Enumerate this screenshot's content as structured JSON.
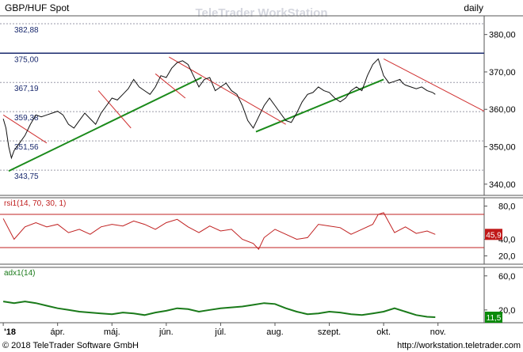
{
  "header": {
    "symbol": "GBP/HUF Spot",
    "watermark": "TeleTrader WorkStation",
    "period": "daily"
  },
  "footer": {
    "copyright": "© 2018 TeleTrader Software GmbH",
    "url": "http://workstation.teletrader.com"
  },
  "colors": {
    "background": "#ffffff",
    "text": "#000000",
    "level_text": "#1a2a6e",
    "grid": "#9a9aa8",
    "trendline": "#1a8a1a",
    "resistance": "#d03030",
    "top_level": "#1a2a6e",
    "rsi_line": "#c02020",
    "rsi_band": "#c02020",
    "adx_line": "#1a7a1a",
    "rsi_badge": "#c01818",
    "adx_badge": "#0a8a0a",
    "badge_text": "#ffffff"
  },
  "chart_data": [
    {
      "panel": "price",
      "type": "line",
      "title": "GBP/HUF Spot",
      "timeframe": "daily",
      "ylim": [
        337,
        385
      ],
      "y_ticks": [
        "340,00",
        "350,00",
        "360,00",
        "370,00",
        "380,00"
      ],
      "y_tick_values": [
        340,
        350,
        360,
        370,
        380
      ],
      "x_ticks": [
        "'18",
        "ápr.",
        "máj.",
        "jún.",
        "júl.",
        "aug.",
        "szept.",
        "okt.",
        "nov."
      ],
      "x_tick_months": [
        3,
        4,
        5,
        6,
        7,
        8,
        9,
        10,
        11
      ],
      "x_range_months": [
        2.94,
        11.85
      ],
      "levels": [
        {
          "label": "382,88",
          "value": 382.88
        },
        {
          "label": "375,00",
          "value": 375.0
        },
        {
          "label": "367,19",
          "value": 367.19
        },
        {
          "label": "359,38",
          "value": 359.38
        },
        {
          "label": "351,56",
          "value": 351.56
        },
        {
          "label": "343,75",
          "value": 343.75
        }
      ],
      "series": [
        {
          "x_months": [
            3.0,
            3.05,
            3.1,
            3.15,
            3.2,
            3.3,
            3.4,
            3.5,
            3.6,
            3.7,
            3.8,
            3.9,
            4.0,
            4.1,
            4.2,
            4.3,
            4.4,
            4.5,
            4.6,
            4.7,
            4.8,
            4.9,
            5.0,
            5.1,
            5.2,
            5.3,
            5.4,
            5.5,
            5.6,
            5.7,
            5.8,
            5.9,
            6.0,
            6.1,
            6.2,
            6.3,
            6.4,
            6.5,
            6.6,
            6.7,
            6.8,
            6.9,
            7.0,
            7.1,
            7.2,
            7.3,
            7.4,
            7.5,
            7.6,
            7.7,
            7.8,
            7.9,
            8.0,
            8.1,
            8.2,
            8.3,
            8.4,
            8.5,
            8.6,
            8.7,
            8.8,
            8.9,
            9.0,
            9.1,
            9.2,
            9.3,
            9.4,
            9.5,
            9.6,
            9.7,
            9.8,
            9.9,
            10.0,
            10.1,
            10.2,
            10.3,
            10.35,
            10.4,
            10.5,
            10.6,
            10.7,
            10.8,
            10.9,
            10.95
          ],
          "values": [
            357.5,
            355,
            350,
            347,
            349,
            351,
            353,
            356,
            358.5,
            358,
            358.5,
            359,
            359.5,
            358.5,
            356,
            355,
            357,
            359,
            357.5,
            356,
            359,
            361,
            363,
            362.5,
            364,
            365.5,
            368,
            366,
            365,
            364,
            366,
            369,
            368.5,
            371,
            372.5,
            373,
            372,
            369,
            366,
            368,
            368.5,
            365,
            366,
            367,
            365,
            364,
            361,
            357,
            355,
            358,
            361,
            363,
            361,
            359,
            357,
            356.5,
            359,
            362,
            364,
            364.5,
            366,
            365,
            364.5,
            363,
            362,
            363,
            365,
            366,
            365,
            369,
            372,
            373.5,
            369,
            367,
            367.5,
            368,
            367,
            366.5,
            366,
            365.5,
            366,
            365,
            364.5,
            364
          ]
        }
      ],
      "trend_lines": [
        {
          "type": "support",
          "x_months": [
            3.1,
            6.65
          ],
          "values": [
            343.5,
            368.5
          ]
        },
        {
          "type": "support",
          "x_months": [
            7.65,
            10.0
          ],
          "values": [
            354.0,
            368.0
          ]
        },
        {
          "type": "resistance",
          "x_months": [
            3.0,
            3.8
          ],
          "values": [
            358.5,
            351.0
          ]
        },
        {
          "type": "resistance",
          "x_months": [
            4.75,
            5.35
          ],
          "values": [
            365.0,
            355.0
          ]
        },
        {
          "type": "resistance",
          "x_months": [
            5.8,
            6.35
          ],
          "values": [
            369.5,
            363.0
          ]
        },
        {
          "type": "resistance",
          "x_months": [
            6.05,
            8.2
          ],
          "values": [
            374.0,
            356.0
          ]
        },
        {
          "type": "resistance",
          "x_months": [
            10.0,
            11.85
          ],
          "values": [
            373.5,
            359.5
          ]
        }
      ]
    },
    {
      "panel": "rsi",
      "type": "line",
      "label": "rsi1(14, 70, 30, 1)",
      "ylim": [
        10,
        90
      ],
      "y_ticks": [
        "80,0",
        "40,0",
        "20,0"
      ],
      "y_tick_values": [
        80,
        40,
        20
      ],
      "bands": [
        70,
        30
      ],
      "last_value": "45,9",
      "series": [
        {
          "x_months": [
            3.0,
            3.2,
            3.4,
            3.6,
            3.8,
            4.0,
            4.2,
            4.4,
            4.6,
            4.8,
            5.0,
            5.2,
            5.4,
            5.6,
            5.8,
            6.0,
            6.2,
            6.4,
            6.6,
            6.8,
            7.0,
            7.2,
            7.4,
            7.6,
            7.7,
            7.8,
            8.0,
            8.2,
            8.4,
            8.6,
            8.8,
            9.0,
            9.2,
            9.4,
            9.6,
            9.8,
            9.9,
            10.0,
            10.2,
            10.4,
            10.6,
            10.8,
            10.95
          ],
          "values": [
            65,
            40,
            55,
            60,
            55,
            58,
            48,
            52,
            46,
            55,
            58,
            56,
            62,
            58,
            52,
            60,
            64,
            55,
            48,
            56,
            50,
            52,
            40,
            35,
            28,
            42,
            52,
            46,
            40,
            42,
            58,
            56,
            54,
            46,
            52,
            58,
            70,
            72,
            48,
            55,
            47,
            50,
            45.9
          ]
        }
      ]
    },
    {
      "panel": "adx",
      "type": "line",
      "label": "adx1(14)",
      "ylim": [
        5,
        70
      ],
      "y_ticks": [
        "60,0",
        "20,0"
      ],
      "y_tick_values": [
        60,
        20
      ],
      "last_value": "11,5",
      "series": [
        {
          "x_months": [
            3.0,
            3.2,
            3.4,
            3.6,
            3.8,
            4.0,
            4.2,
            4.4,
            4.6,
            4.8,
            5.0,
            5.2,
            5.4,
            5.6,
            5.8,
            6.0,
            6.2,
            6.4,
            6.6,
            6.8,
            7.0,
            7.2,
            7.4,
            7.6,
            7.8,
            8.0,
            8.2,
            8.4,
            8.6,
            8.8,
            9.0,
            9.2,
            9.4,
            9.6,
            9.8,
            10.0,
            10.2,
            10.4,
            10.6,
            10.8,
            10.95
          ],
          "values": [
            30,
            28,
            30,
            28,
            25,
            22,
            20,
            18,
            17,
            16,
            15,
            17,
            16,
            14,
            17,
            19,
            22,
            21,
            18,
            20,
            22,
            23,
            24,
            26,
            28,
            27,
            22,
            18,
            15,
            16,
            18,
            17,
            15,
            14,
            16,
            18,
            22,
            18,
            14,
            12,
            11.5
          ]
        }
      ]
    }
  ]
}
